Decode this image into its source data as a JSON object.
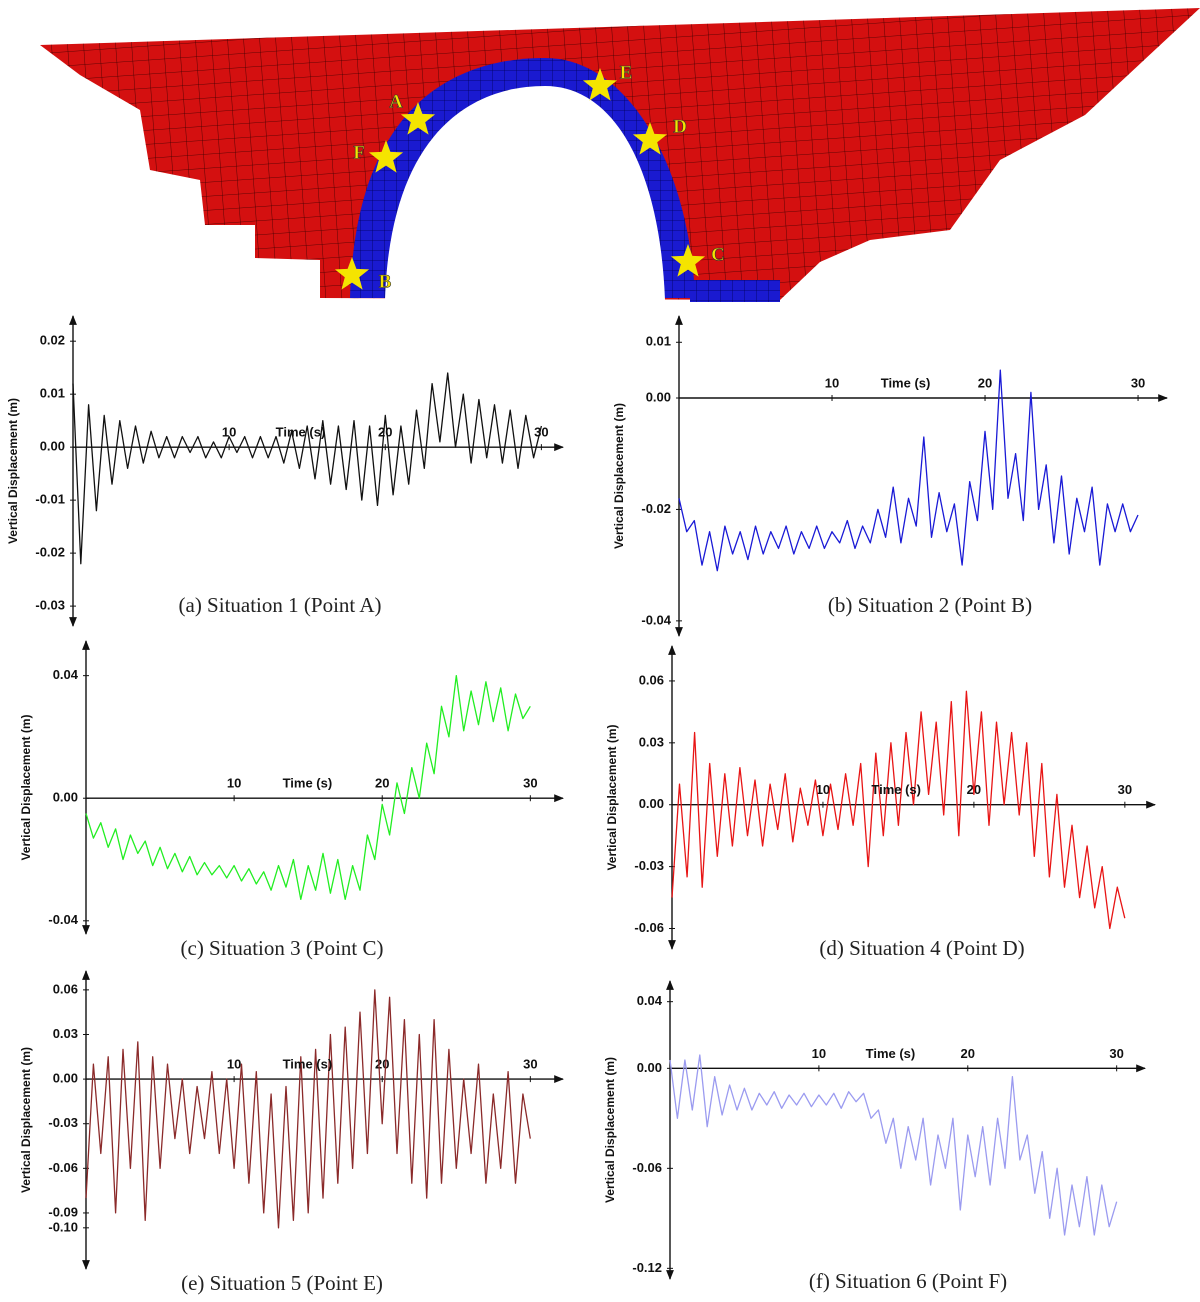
{
  "figure": {
    "point_labels": [
      "A",
      "B",
      "C",
      "D",
      "E",
      "F"
    ]
  },
  "chart_data": [
    {
      "type": "line",
      "caption": "(a) Situation 1 (Point A)",
      "xlabel": "Time (s)",
      "ylabel": "Vertical Displacement (m)",
      "color": "#111111",
      "x": [
        0,
        0.5,
        1,
        1.5,
        2,
        2.5,
        3,
        3.5,
        4,
        4.5,
        5,
        5.5,
        6,
        6.5,
        7,
        7.5,
        8,
        8.5,
        9,
        9.5,
        10,
        10.5,
        11,
        11.5,
        12,
        12.5,
        13,
        13.5,
        14,
        14.5,
        15,
        15.5,
        16,
        16.5,
        17,
        17.5,
        18,
        18.5,
        19,
        19.5,
        20,
        20.5,
        21,
        21.5,
        22,
        22.5,
        23,
        23.5,
        24,
        24.5,
        25,
        25.5,
        26,
        26.5,
        27,
        27.5,
        28,
        28.5,
        29,
        29.5,
        30
      ],
      "values": [
        0.012,
        -0.022,
        0.008,
        -0.012,
        0.006,
        -0.007,
        0.005,
        -0.004,
        0.004,
        -0.003,
        0.003,
        -0.002,
        0.002,
        -0.002,
        0.002,
        -0.001,
        0.002,
        -0.002,
        0.001,
        -0.002,
        0.002,
        -0.001,
        0.002,
        -0.002,
        0.002,
        -0.002,
        0.002,
        -0.003,
        0.003,
        -0.004,
        0.004,
        -0.006,
        0.005,
        -0.007,
        0.004,
        -0.008,
        0.005,
        -0.01,
        0.004,
        -0.011,
        0.006,
        -0.009,
        0.004,
        -0.007,
        0.007,
        -0.004,
        0.012,
        0.001,
        0.014,
        0,
        0.01,
        -0.003,
        0.009,
        -0.002,
        0.008,
        -0.003,
        0.007,
        -0.004,
        0.006,
        -0.002,
        0.004
      ],
      "xlim": [
        0,
        31
      ],
      "ylim": [
        -0.033,
        0.024
      ],
      "xticks": [
        10,
        20,
        30
      ],
      "yticks": [
        0.02,
        0.01,
        {
          "value": 0,
          "label": "0.00"
        },
        -0.01,
        -0.02,
        -0.03
      ],
      "grid": false
    },
    {
      "type": "line",
      "caption": "(b) Situation 2 (Point B)",
      "xlabel": "Time (s)",
      "ylabel": "Vertical Displacement (m)",
      "color": "#1a1ad6",
      "x": [
        0,
        0.5,
        1,
        1.5,
        2,
        2.5,
        3,
        3.5,
        4,
        4.5,
        5,
        5.5,
        6,
        6.5,
        7,
        7.5,
        8,
        8.5,
        9,
        9.5,
        10,
        10.5,
        11,
        11.5,
        12,
        12.5,
        13,
        13.5,
        14,
        14.5,
        15,
        15.5,
        16,
        16.5,
        17,
        17.5,
        18,
        18.5,
        19,
        19.5,
        20,
        20.5,
        21,
        21.5,
        22,
        22.5,
        23,
        23.5,
        24,
        24.5,
        25,
        25.5,
        26,
        26.5,
        27,
        27.5,
        28,
        28.5,
        29,
        29.5,
        30
      ],
      "values": [
        -0.018,
        -0.024,
        -0.022,
        -0.03,
        -0.024,
        -0.031,
        -0.023,
        -0.028,
        -0.024,
        -0.029,
        -0.023,
        -0.028,
        -0.024,
        -0.027,
        -0.023,
        -0.028,
        -0.024,
        -0.027,
        -0.023,
        -0.027,
        -0.024,
        -0.026,
        -0.022,
        -0.027,
        -0.023,
        -0.026,
        -0.02,
        -0.025,
        -0.016,
        -0.026,
        -0.018,
        -0.023,
        -0.007,
        -0.025,
        -0.017,
        -0.024,
        -0.019,
        -0.03,
        -0.015,
        -0.022,
        -0.006,
        -0.02,
        0.005,
        -0.018,
        -0.01,
        -0.022,
        0.001,
        -0.02,
        -0.012,
        -0.026,
        -0.014,
        -0.028,
        -0.018,
        -0.024,
        -0.016,
        -0.03,
        -0.019,
        -0.024,
        -0.019,
        -0.024,
        -0.021
      ],
      "xlim": [
        0,
        31.5
      ],
      "ylim": [
        -0.042,
        0.014
      ],
      "xticks": [
        10,
        20,
        30
      ],
      "yticks": [
        0.01,
        {
          "value": 0,
          "label": "0.00"
        },
        -0.02,
        -0.04
      ],
      "grid": false
    },
    {
      "type": "line",
      "caption": "(c) Situation 3 (Point C)",
      "xlabel": "Time (s)",
      "ylabel": "Vertical Displacement (m)",
      "color": "#22ee22",
      "x": [
        0,
        0.5,
        1,
        1.5,
        2,
        2.5,
        3,
        3.5,
        4,
        4.5,
        5,
        5.5,
        6,
        6.5,
        7,
        7.5,
        8,
        8.5,
        9,
        9.5,
        10,
        10.5,
        11,
        11.5,
        12,
        12.5,
        13,
        13.5,
        14,
        14.5,
        15,
        15.5,
        16,
        16.5,
        17,
        17.5,
        18,
        18.5,
        19,
        19.5,
        20,
        20.5,
        21,
        21.5,
        22,
        22.5,
        23,
        23.5,
        24,
        24.5,
        25,
        25.5,
        26,
        26.5,
        27,
        27.5,
        28,
        28.5,
        29,
        29.5,
        30
      ],
      "values": [
        -0.005,
        -0.013,
        -0.008,
        -0.016,
        -0.01,
        -0.02,
        -0.012,
        -0.018,
        -0.014,
        -0.022,
        -0.016,
        -0.023,
        -0.018,
        -0.024,
        -0.019,
        -0.025,
        -0.021,
        -0.025,
        -0.022,
        -0.026,
        -0.022,
        -0.027,
        -0.023,
        -0.028,
        -0.024,
        -0.03,
        -0.022,
        -0.029,
        -0.02,
        -0.033,
        -0.022,
        -0.03,
        -0.018,
        -0.031,
        -0.02,
        -0.033,
        -0.022,
        -0.03,
        -0.012,
        -0.02,
        -0.002,
        -0.012,
        0.005,
        -0.005,
        0.01,
        0,
        0.018,
        0.008,
        0.03,
        0.02,
        0.04,
        0.022,
        0.035,
        0.024,
        0.038,
        0.025,
        0.036,
        0.022,
        0.034,
        0.026,
        0.03
      ],
      "xlim": [
        0,
        31.8
      ],
      "ylim": [
        -0.043,
        0.05
      ],
      "xticks": [
        10,
        20,
        30
      ],
      "yticks": [
        0.04,
        {
          "value": 0,
          "label": "0.00"
        },
        -0.04
      ],
      "grid": false
    },
    {
      "type": "line",
      "caption": "(d) Situation 4 (Point D)",
      "xlabel": "Time (s)",
      "ylabel": "Vertical Displacement (m)",
      "color": "#e81515",
      "x": [
        0,
        0.5,
        1,
        1.5,
        2,
        2.5,
        3,
        3.5,
        4,
        4.5,
        5,
        5.5,
        6,
        6.5,
        7,
        7.5,
        8,
        8.5,
        9,
        9.5,
        10,
        10.5,
        11,
        11.5,
        12,
        12.5,
        13,
        13.5,
        14,
        14.5,
        15,
        15.5,
        16,
        16.5,
        17,
        17.5,
        18,
        18.5,
        19,
        19.5,
        20,
        20.5,
        21,
        21.5,
        22,
        22.5,
        23,
        23.5,
        24,
        24.5,
        25,
        25.5,
        26,
        26.5,
        27,
        27.5,
        28,
        28.5,
        29,
        29.5,
        30
      ],
      "values": [
        -0.045,
        0.01,
        -0.035,
        0.035,
        -0.04,
        0.02,
        -0.025,
        0.015,
        -0.02,
        0.018,
        -0.015,
        0.012,
        -0.02,
        0.01,
        -0.012,
        0.015,
        -0.018,
        0.008,
        -0.01,
        0.012,
        -0.015,
        0.01,
        -0.012,
        0.015,
        -0.01,
        0.02,
        -0.03,
        0.025,
        -0.015,
        0.03,
        -0.01,
        0.035,
        0,
        0.045,
        0.005,
        0.04,
        -0.005,
        0.05,
        -0.015,
        0.055,
        0.005,
        0.045,
        -0.01,
        0.04,
        0,
        0.035,
        -0.005,
        0.03,
        -0.025,
        0.02,
        -0.035,
        0.005,
        -0.04,
        -0.01,
        -0.045,
        -0.02,
        -0.05,
        -0.03,
        -0.06,
        -0.04,
        -0.055
      ],
      "xlim": [
        0,
        31.6
      ],
      "ylim": [
        -0.068,
        0.075
      ],
      "xticks": [
        10,
        20,
        30
      ],
      "yticks": [
        0.06,
        0.03,
        {
          "value": 0,
          "label": "0.00"
        },
        -0.03,
        -0.06
      ],
      "grid": false
    },
    {
      "type": "line",
      "caption": "(e) Situation 5 (Point E)",
      "xlabel": "Time (s)",
      "ylabel": "Vertical Displacement (m)",
      "color": "#8b2a2a",
      "x": [
        0,
        0.5,
        1,
        1.5,
        2,
        2.5,
        3,
        3.5,
        4,
        4.5,
        5,
        5.5,
        6,
        6.5,
        7,
        7.5,
        8,
        8.5,
        9,
        9.5,
        10,
        10.5,
        11,
        11.5,
        12,
        12.5,
        13,
        13.5,
        14,
        14.5,
        15,
        15.5,
        16,
        16.5,
        17,
        17.5,
        18,
        18.5,
        19,
        19.5,
        20,
        20.5,
        21,
        21.5,
        22,
        22.5,
        23,
        23.5,
        24,
        24.5,
        25,
        25.5,
        26,
        26.5,
        27,
        27.5,
        28,
        28.5,
        29,
        29.5,
        30
      ],
      "values": [
        -0.08,
        0.01,
        -0.05,
        0.015,
        -0.09,
        0.02,
        -0.06,
        0.025,
        -0.095,
        0.015,
        -0.06,
        0.01,
        -0.04,
        0,
        -0.05,
        -0.005,
        -0.04,
        0.005,
        -0.05,
        0,
        -0.06,
        0.01,
        -0.07,
        0.005,
        -0.09,
        -0.01,
        -0.1,
        -0.005,
        -0.095,
        0.015,
        -0.09,
        0.02,
        -0.08,
        0.03,
        -0.07,
        0.035,
        -0.06,
        0.045,
        -0.05,
        0.06,
        -0.03,
        0.055,
        -0.05,
        0.04,
        -0.07,
        0.03,
        -0.08,
        0.04,
        -0.07,
        0.02,
        -0.06,
        0,
        -0.05,
        0.01,
        -0.07,
        -0.01,
        -0.06,
        0.005,
        -0.07,
        -0.01,
        -0.04
      ],
      "xlim": [
        0,
        31.8
      ],
      "ylim": [
        -0.125,
        0.07
      ],
      "xticks": [
        10,
        20,
        30
      ],
      "yticks": [
        0.06,
        0.03,
        {
          "value": 0,
          "label": "0.00"
        },
        -0.03,
        -0.06,
        -0.09,
        {
          "value": -0.1,
          "label": "-0.10"
        }
      ],
      "grid": false
    },
    {
      "type": "line",
      "caption": "(f) Situation 6 (Point F)",
      "xlabel": "Time (s)",
      "ylabel": "Vertical Displacement (m)",
      "color": "#9b9bf0",
      "x": [
        0,
        0.5,
        1,
        1.5,
        2,
        2.5,
        3,
        3.5,
        4,
        4.5,
        5,
        5.5,
        6,
        6.5,
        7,
        7.5,
        8,
        8.5,
        9,
        9.5,
        10,
        10.5,
        11,
        11.5,
        12,
        12.5,
        13,
        13.5,
        14,
        14.5,
        15,
        15.5,
        16,
        16.5,
        17,
        17.5,
        18,
        18.5,
        19,
        19.5,
        20,
        20.5,
        21,
        21.5,
        22,
        22.5,
        23,
        23.5,
        24,
        24.5,
        25,
        25.5,
        26,
        26.5,
        27,
        27.5,
        28,
        28.5,
        29,
        29.5,
        30
      ],
      "values": [
        0.005,
        -0.03,
        0.005,
        -0.025,
        0.008,
        -0.035,
        -0.005,
        -0.028,
        -0.01,
        -0.025,
        -0.012,
        -0.025,
        -0.015,
        -0.022,
        -0.014,
        -0.024,
        -0.016,
        -0.022,
        -0.015,
        -0.023,
        -0.016,
        -0.022,
        -0.015,
        -0.024,
        -0.014,
        -0.02,
        -0.015,
        -0.03,
        -0.025,
        -0.045,
        -0.03,
        -0.06,
        -0.035,
        -0.055,
        -0.03,
        -0.07,
        -0.04,
        -0.06,
        -0.03,
        -0.085,
        -0.04,
        -0.065,
        -0.035,
        -0.07,
        -0.03,
        -0.06,
        -0.005,
        -0.055,
        -0.04,
        -0.075,
        -0.05,
        -0.09,
        -0.06,
        -0.1,
        -0.07,
        -0.095,
        -0.065,
        -0.1,
        -0.07,
        -0.095,
        -0.08
      ],
      "xlim": [
        0,
        31.5
      ],
      "ylim": [
        -0.124,
        0.05
      ],
      "xticks": [
        10,
        20,
        30
      ],
      "yticks": [
        0.04,
        {
          "value": 0,
          "label": "0.00"
        },
        -0.06,
        -0.12
      ],
      "grid": false
    }
  ]
}
